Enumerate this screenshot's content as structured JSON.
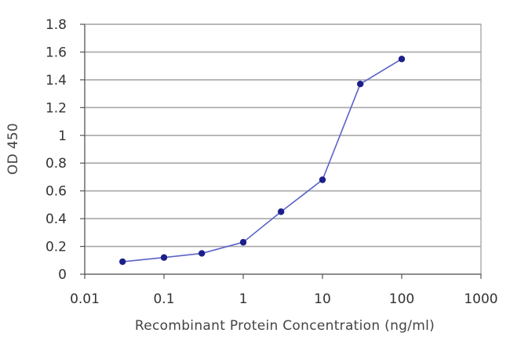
{
  "chart_data": {
    "type": "line",
    "title": "",
    "xlabel": "Recombinant Protein Concentration (ng/ml)",
    "ylabel": "OD 450",
    "x_scale": "log",
    "xlim": [
      0.01,
      1000
    ],
    "ylim": [
      0,
      1.8
    ],
    "x_ticks": [
      "0.01",
      "0.1",
      "1",
      "10",
      "100",
      "1000"
    ],
    "y_ticks": [
      "0",
      "0.2",
      "0.4",
      "0.6",
      "0.8",
      "1",
      "1.2",
      "1.4",
      "1.6",
      "1.8"
    ],
    "grid": "horizontal",
    "legend": "none",
    "series": [
      {
        "x": [
          0.03,
          0.1,
          0.3,
          1,
          3,
          10,
          30,
          100
        ],
        "y": [
          0.09,
          0.12,
          0.15,
          0.23,
          0.45,
          0.68,
          1.37,
          1.55
        ]
      }
    ],
    "colors": {
      "line": "#5a62c8",
      "marker": "#1c1f8a",
      "grid": "#a8a8a8"
    }
  }
}
